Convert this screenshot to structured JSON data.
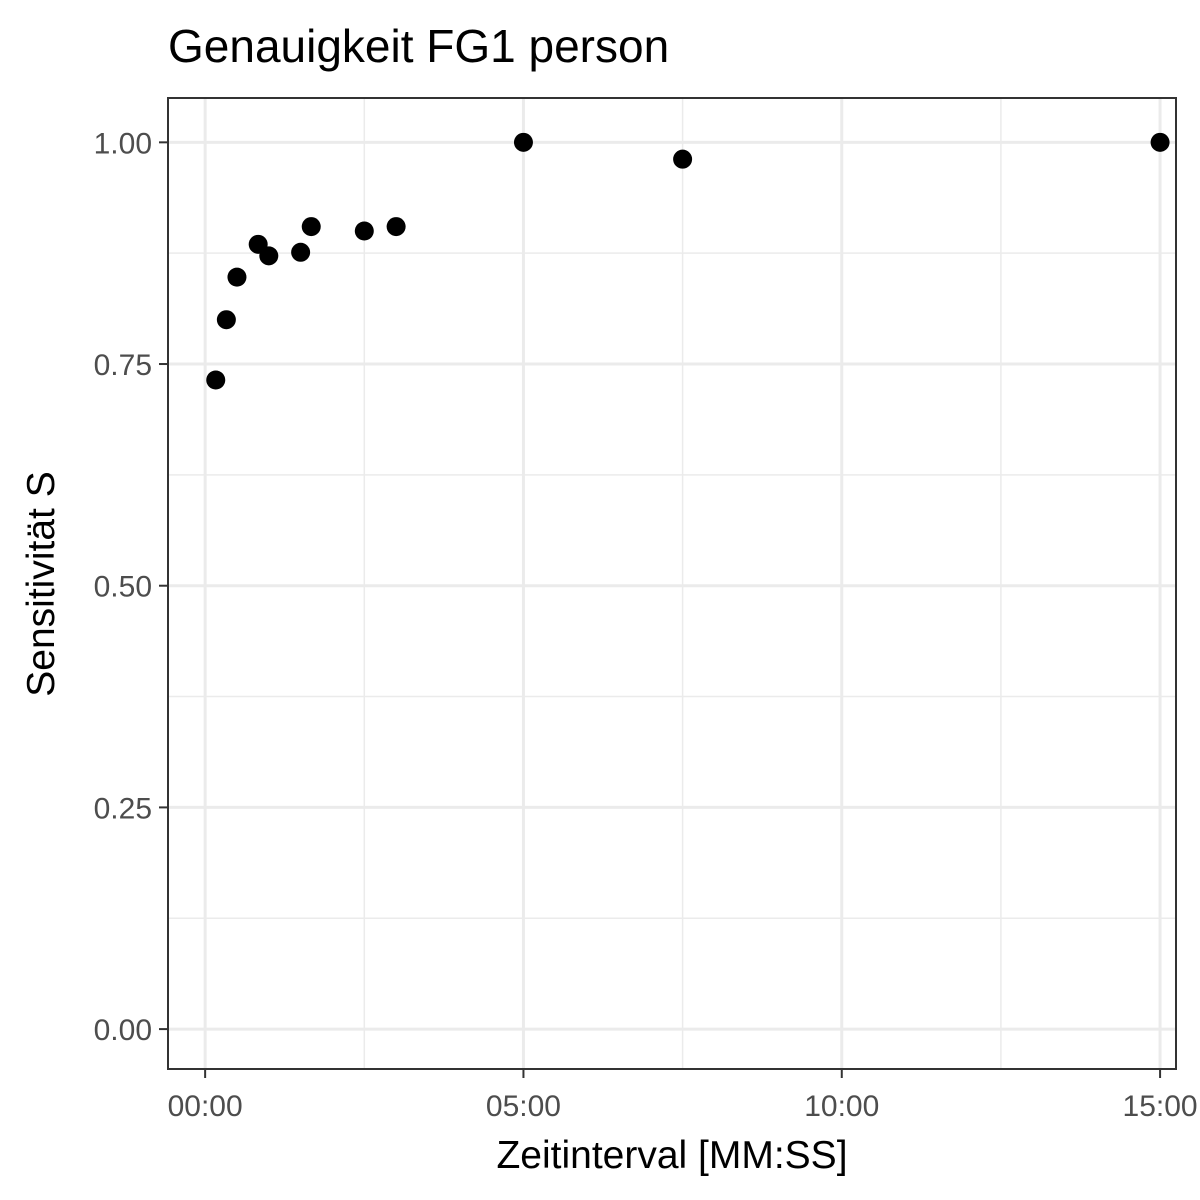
{
  "chart_data": {
    "type": "scatter",
    "title": "Genauigkeit FG1 person",
    "xlabel": "Zeitinterval [MM:SS]",
    "ylabel": "Sensitivität S",
    "x_unit": "MM:SS",
    "xlim": [
      "-00:35",
      "15:15"
    ],
    "ylim": [
      -0.045,
      1.05
    ],
    "x_ticks": [
      "00:00",
      "05:00",
      "10:00",
      "15:00"
    ],
    "x_minor_ticks": [
      "02:30",
      "07:30",
      "12:30"
    ],
    "y_ticks": [
      "0.00",
      "0.25",
      "0.50",
      "0.75",
      "1.00"
    ],
    "y_minor_ticks": [
      0.125,
      0.375,
      0.625,
      0.875
    ],
    "grid": true,
    "legend": "none",
    "point_color": "#000000",
    "series": [
      {
        "points": [
          {
            "x": "00:10",
            "y": 0.732
          },
          {
            "x": "00:20",
            "y": 0.8
          },
          {
            "x": "00:30",
            "y": 0.848
          },
          {
            "x": "00:50",
            "y": 0.885
          },
          {
            "x": "01:00",
            "y": 0.872
          },
          {
            "x": "01:30",
            "y": 0.876
          },
          {
            "x": "01:40",
            "y": 0.905
          },
          {
            "x": "02:30",
            "y": 0.9
          },
          {
            "x": "03:00",
            "y": 0.905
          },
          {
            "x": "05:00",
            "y": 1.0
          },
          {
            "x": "07:30",
            "y": 0.981
          },
          {
            "x": "15:00",
            "y": 1.0
          }
        ]
      }
    ]
  }
}
